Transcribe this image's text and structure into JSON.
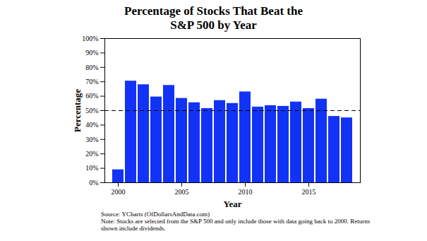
{
  "chart_data": {
    "type": "bar",
    "title": "Percentage of Stocks That Beat the S&P 500 by Year",
    "x_label": "Year",
    "y_label": "Percentage",
    "categories": [
      2000,
      2001,
      2002,
      2003,
      2004,
      2005,
      2006,
      2007,
      2008,
      2009,
      2010,
      2011,
      2012,
      2013,
      2014,
      2015,
      2016,
      2017,
      2018
    ],
    "values": [
      9,
      70.5,
      68,
      59.5,
      67.5,
      58.5,
      55.5,
      51.5,
      57,
      55,
      63,
      52.5,
      53.5,
      53,
      56,
      51.5,
      58,
      46,
      45
    ],
    "color": "#1233f5",
    "xticks": [
      2000,
      2005,
      2010,
      2015
    ],
    "ylim": [
      0,
      100
    ],
    "yticks": [
      {
        "value": 0,
        "label": "0%"
      },
      {
        "value": 10,
        "label": "10%"
      },
      {
        "value": 20,
        "label": "20%"
      },
      {
        "value": 30,
        "label": "30%"
      },
      {
        "value": 40,
        "label": "40%"
      },
      {
        "value": 50,
        "label": "50%"
      },
      {
        "value": 60,
        "label": "60%"
      },
      {
        "value": 70,
        "label": "70%"
      },
      {
        "value": 80,
        "label": "80%"
      },
      {
        "value": 90,
        "label": "90%"
      },
      {
        "value": 100,
        "label": "100%"
      }
    ],
    "reference_line": 50,
    "grid": false,
    "source": "Source:  YCharts (OfDollarsAndData.com)",
    "note": "Note: Stocks are selected from the S&P 500 and only include those with data going back to 2000. Returns shown include dividends."
  }
}
